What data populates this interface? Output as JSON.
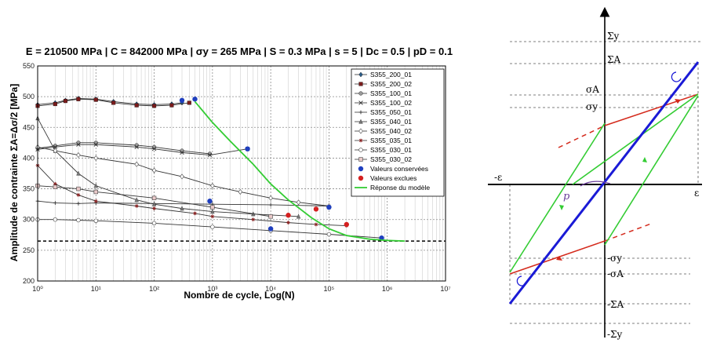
{
  "chart_data": {
    "type": "scatter",
    "title": "E = 210500 MPa | C = 842000 MPa | σy = 265 MPa | S = 0.3 MPa | s = 5 | Dc = 0.5 | pD = 0.1",
    "xlabel": "Nombre de cycle, Log(N)",
    "ylabel": "Amplitude de contrainte ΣA=Δσ/2 [MPa]",
    "xscale": "log",
    "xlim": [
      1,
      10000000
    ],
    "ylim": [
      200,
      550
    ],
    "x_ticks": [
      "10⁰",
      "10¹",
      "10²",
      "10³",
      "10⁴",
      "10⁵",
      "10⁶",
      "10⁷"
    ],
    "y_ticks": [
      "200",
      "250",
      "300",
      "350",
      "400",
      "450",
      "500",
      "550"
    ],
    "grid": true,
    "legend_position": "top-right",
    "reference_line": {
      "y": 265,
      "style": "dashed"
    },
    "series": [
      {
        "name": "S355_200_01",
        "marker": "diamond",
        "color": "#2b5d8a",
        "x": [
          1,
          2,
          3,
          5,
          10,
          20,
          50,
          100,
          200,
          300
        ],
        "y": [
          487,
          490,
          494,
          497,
          496,
          492,
          488,
          487,
          488,
          490
        ]
      },
      {
        "name": "S355_200_02",
        "marker": "square",
        "color": "#7a1b1b",
        "x": [
          1,
          2,
          3,
          5,
          10,
          20,
          50,
          100,
          200,
          400
        ],
        "y": [
          485,
          488,
          493,
          496,
          495,
          490,
          486,
          485,
          486,
          490
        ]
      },
      {
        "name": "S355_100_01",
        "marker": "circle",
        "color": "#555555",
        "x": [
          1,
          2,
          5,
          10,
          50,
          100,
          300,
          900
        ],
        "y": [
          416,
          420,
          425,
          425,
          421,
          418,
          412,
          407
        ]
      },
      {
        "name": "S355_100_02",
        "marker": "x",
        "color": "#555555",
        "x": [
          1,
          2,
          5,
          10,
          50,
          100,
          300,
          900,
          4000
        ],
        "y": [
          414,
          418,
          422,
          422,
          418,
          415,
          409,
          405,
          415
        ]
      },
      {
        "name": "S355_050_01",
        "marker": "plus",
        "color": "#555555",
        "x": [
          1,
          2,
          5,
          10,
          100,
          1000,
          10000,
          100000
        ],
        "y": [
          330,
          327,
          326,
          327,
          326,
          325,
          324,
          322
        ]
      },
      {
        "name": "S355_040_01",
        "marker": "triangle",
        "color": "#555555",
        "x": [
          1,
          2,
          5,
          10,
          50,
          100,
          300,
          1000,
          5000,
          30000
        ],
        "y": [
          465,
          412,
          375,
          355,
          332,
          325,
          318,
          313,
          309,
          305
        ]
      },
      {
        "name": "S355_040_02",
        "marker": "diamond-open",
        "color": "#555555",
        "x": [
          1,
          2,
          5,
          10,
          50,
          100,
          300,
          1000,
          3000,
          10000,
          30000,
          100000
        ],
        "y": [
          418,
          412,
          405,
          400,
          390,
          380,
          370,
          355,
          345,
          335,
          328,
          322
        ]
      },
      {
        "name": "S355_035_01",
        "marker": "star",
        "color": "#555555",
        "x": [
          1,
          2,
          5,
          10,
          50,
          100,
          500,
          1000,
          5000,
          20000,
          60000,
          200000
        ],
        "y": [
          388,
          358,
          340,
          330,
          322,
          318,
          310,
          305,
          300,
          295,
          292,
          290
        ]
      },
      {
        "name": "S355_030_01",
        "marker": "circle-open",
        "color": "#555555",
        "x": [
          1,
          2,
          5,
          10,
          100,
          1000,
          10000,
          100000,
          800000
        ],
        "y": [
          300,
          300,
          299,
          298,
          294,
          288,
          282,
          276,
          270
        ]
      },
      {
        "name": "S355_030_02",
        "marker": "square-open",
        "color": "#555555",
        "x": [
          1,
          2,
          5,
          10,
          100,
          1000,
          10000
        ],
        "y": [
          355,
          353,
          350,
          345,
          335,
          320,
          305
        ]
      },
      {
        "name": "Valeurs conservées",
        "marker": "dot",
        "color": "#1f3fbf",
        "x": [
          300,
          500,
          900,
          4000,
          10000,
          100000,
          800000
        ],
        "y": [
          494,
          496,
          330,
          415,
          285,
          320,
          270
        ]
      },
      {
        "name": "Valeurs exclues",
        "marker": "dot",
        "color": "#d42020",
        "x": [
          20000,
          60000,
          200000
        ],
        "y": [
          307,
          317,
          292
        ]
      },
      {
        "name": "Réponse du modèle",
        "marker": "line",
        "color": "#33cc33",
        "x": [
          500,
          1000,
          2000,
          5000,
          10000,
          20000,
          50000,
          100000,
          200000,
          500000,
          1000000,
          2000000
        ],
        "y": [
          492,
          458,
          428,
          390,
          358,
          332,
          303,
          285,
          274,
          268,
          266,
          265
        ]
      }
    ]
  },
  "diagram": {
    "axis_labels": {
      "sigma_y_top": "Σy",
      "sigma_A_top": "ΣA",
      "sig_A_top": "σA",
      "sig_y_top": "σy",
      "eps_neg": "-ε",
      "eps_pos": "ε",
      "p": "p",
      "sig_y_bot": "-σy",
      "sig_A_bot": "-σA",
      "sigma_A_bot": "-ΣA",
      "sigma_y_bot": "-Σy"
    },
    "colors": {
      "elastic": "#1a1ad6",
      "plastic": "#d42a1c",
      "unload": "#33cc33",
      "axis": "#000000",
      "p": "#6a3d9a"
    }
  }
}
